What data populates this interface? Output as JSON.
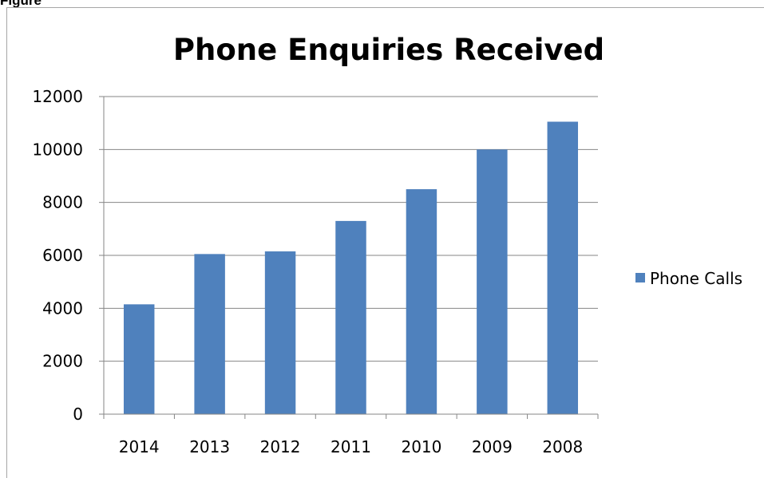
{
  "figure": {
    "caption": "Figure"
  },
  "chart_data": {
    "type": "bar",
    "title": "Phone Enquiries Received",
    "xlabel": "",
    "ylabel": "",
    "categories": [
      "2014",
      "2013",
      "2012",
      "2011",
      "2010",
      "2009",
      "2008"
    ],
    "series": [
      {
        "name": "Phone Calls",
        "color": "#4f81bd",
        "values": [
          4150,
          6050,
          6150,
          7300,
          8500,
          10000,
          11050
        ]
      }
    ],
    "ylim": [
      0,
      12000
    ],
    "yticks": [
      "0",
      "2000",
      "4000",
      "6000",
      "8000",
      "10000",
      "12000"
    ],
    "grid": true,
    "legend_position": "right",
    "gridline_color": "#868686"
  }
}
